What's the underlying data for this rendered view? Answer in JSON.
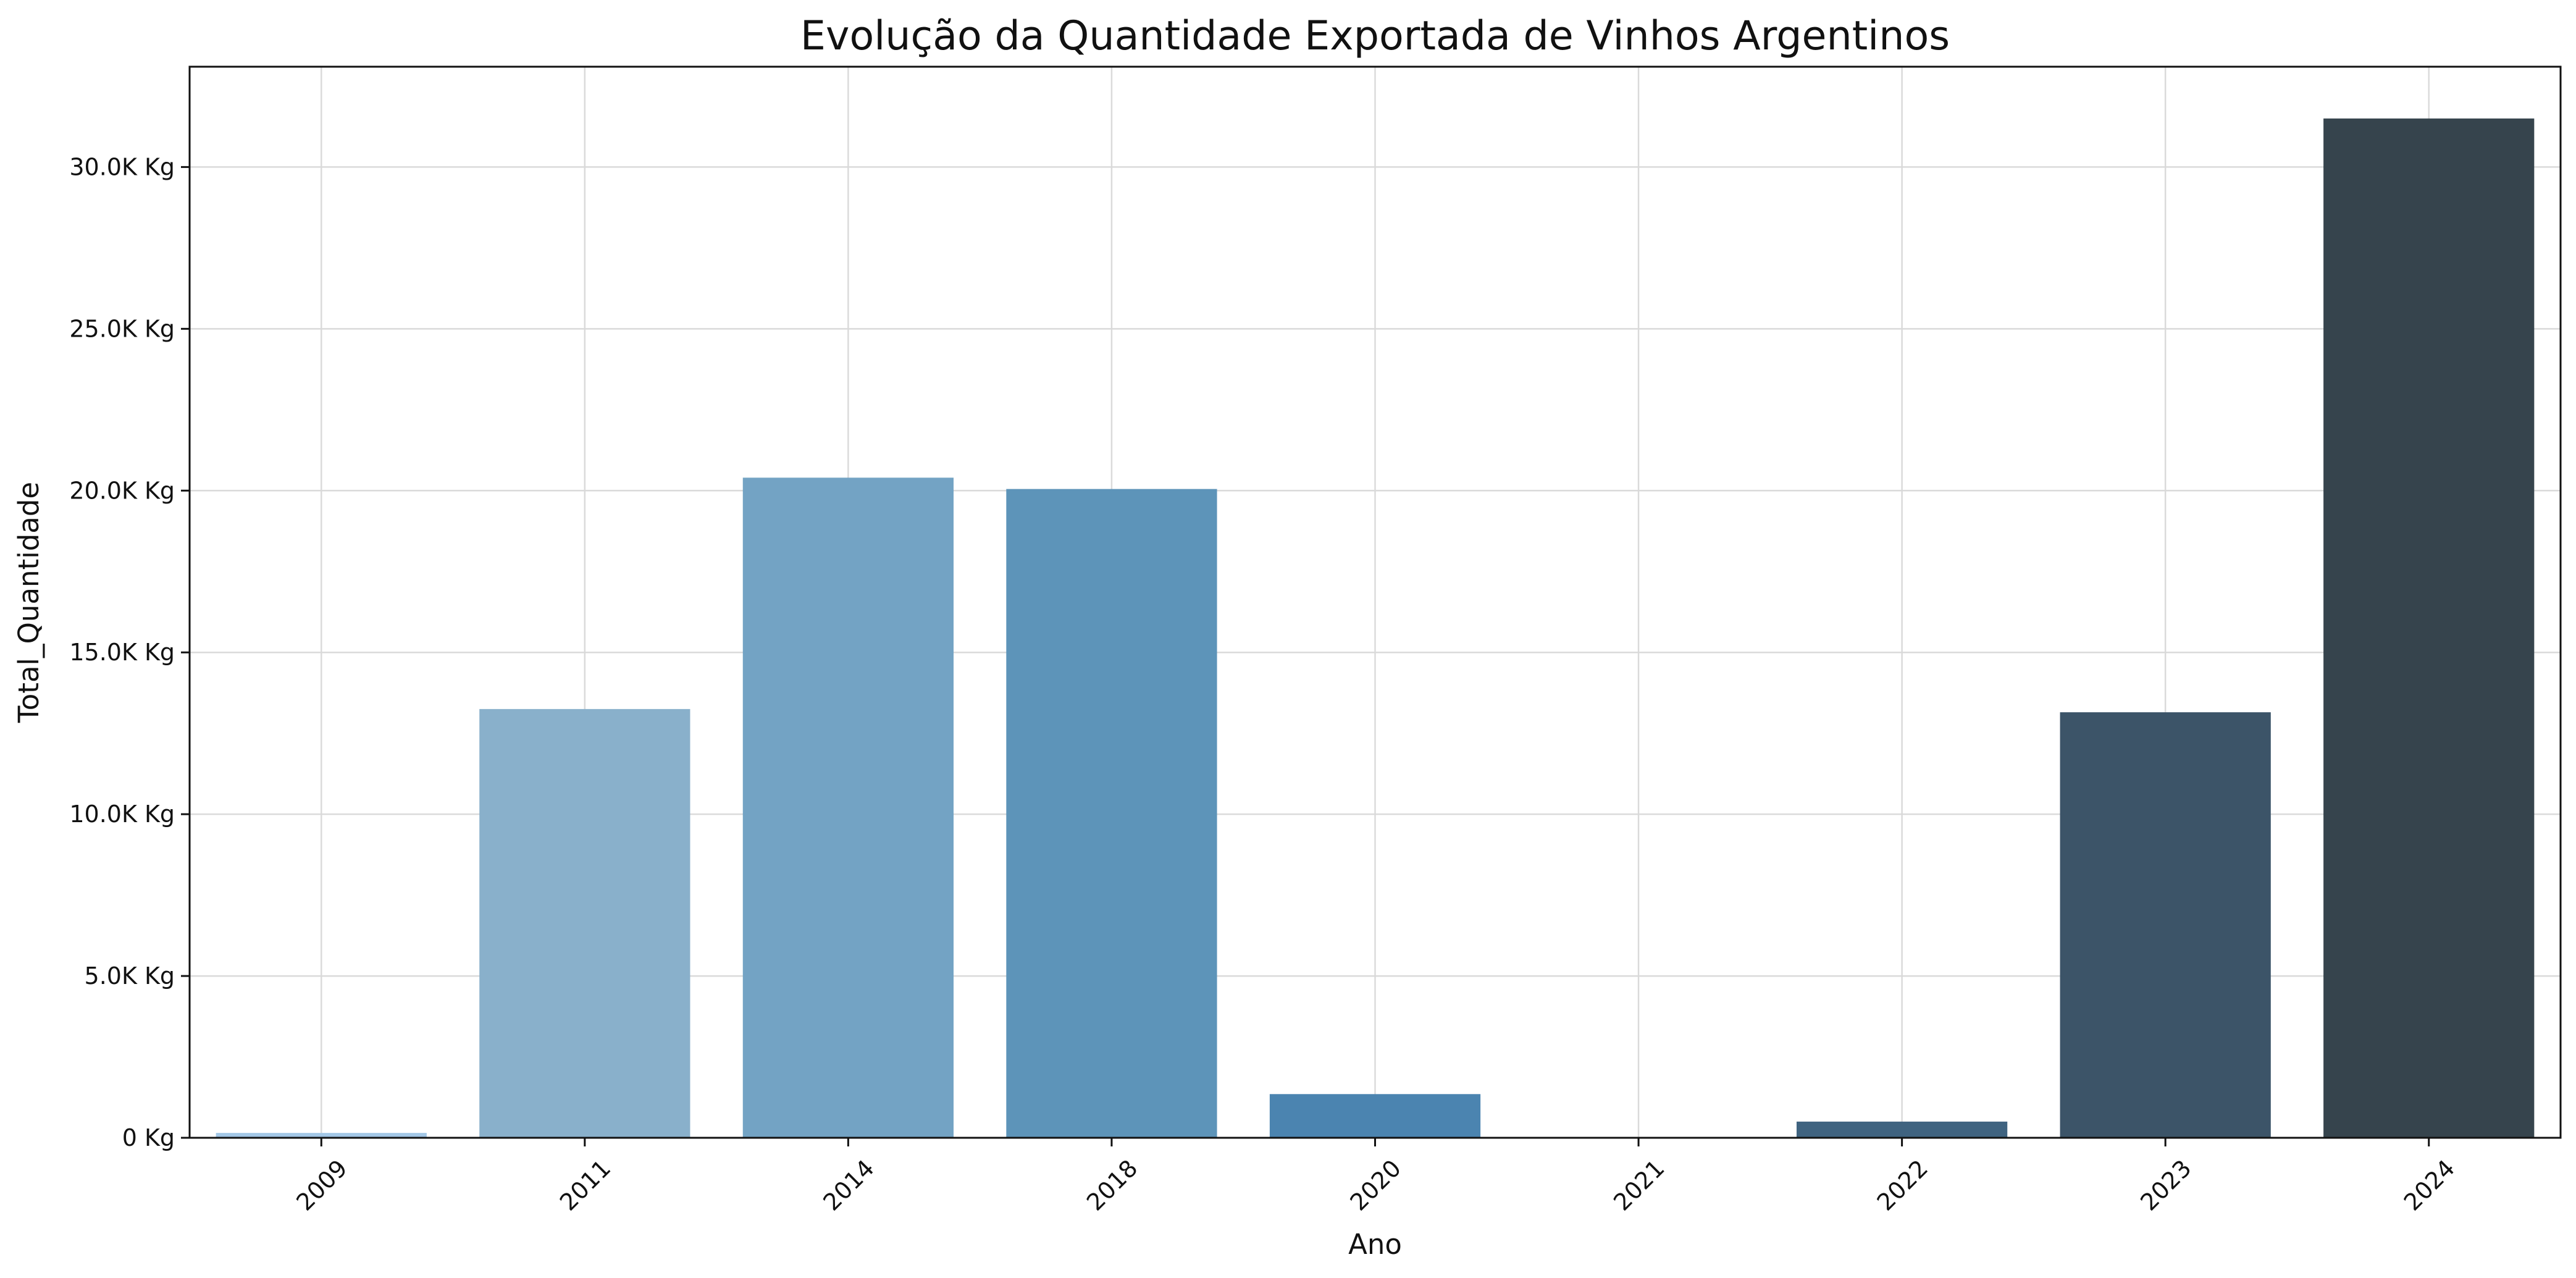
{
  "chart_data": {
    "type": "bar",
    "title": "Evolução da Quantidade Exportada de Vinhos Argentinos",
    "xlabel": "Ano",
    "ylabel": "Total_Quantidade",
    "categories": [
      "2009",
      "2011",
      "2014",
      "2018",
      "2020",
      "2021",
      "2022",
      "2023",
      "2024"
    ],
    "values": [
      150,
      13250,
      20400,
      20050,
      1350,
      0,
      500,
      13150,
      31500
    ],
    "ylim": [
      0,
      33100
    ],
    "yticks": [
      0,
      5000,
      10000,
      15000,
      20000,
      25000,
      30000
    ],
    "ytick_labels": [
      "0 Kg",
      "5.0K Kg",
      "10.0K Kg",
      "15.0K Kg",
      "20.0K Kg",
      "25.0K Kg",
      "30.0K Kg"
    ],
    "grid": true,
    "bar_colors": [
      "#a3c7e6",
      "#89b0cb",
      "#73a3c4",
      "#5d94b9",
      "#4b84b0",
      "#43698a",
      "#3f6380",
      "#3c5468",
      "#36444d"
    ]
  }
}
